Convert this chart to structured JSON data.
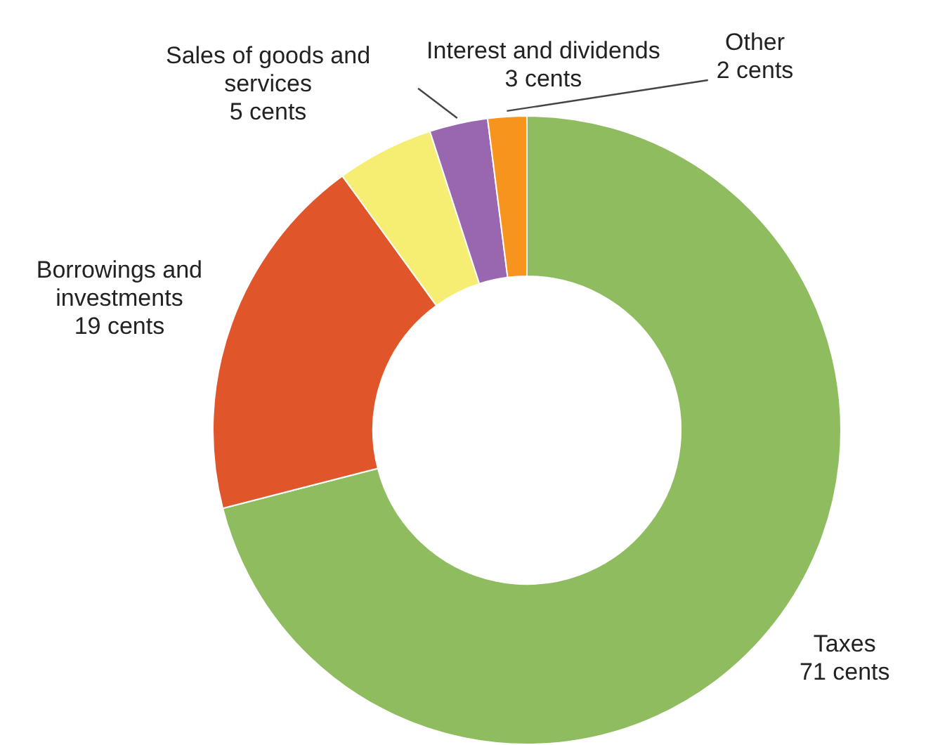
{
  "chart_data": {
    "type": "donut",
    "categories": [
      "Taxes",
      "Borrowings and investments",
      "Sales of goods and services",
      "Interest and dividends",
      "Other"
    ],
    "values": [
      71,
      19,
      5,
      3,
      2
    ],
    "value_labels": [
      "71 cents",
      "19 cents",
      "5 cents",
      "3 cents",
      "2 cents"
    ],
    "colors": [
      "#8fbc5f",
      "#e0562a",
      "#f5ee72",
      "#9966b0",
      "#f7941d"
    ],
    "legend": false
  }
}
